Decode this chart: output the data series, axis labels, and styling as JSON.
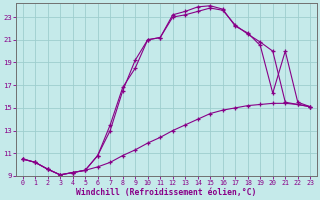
{
  "xlabel": "Windchill (Refroidissement éolien,°C)",
  "xlim_min": -0.5,
  "xlim_max": 23.5,
  "ylim_min": 9,
  "ylim_max": 24.2,
  "xticks": [
    0,
    1,
    2,
    3,
    4,
    5,
    6,
    7,
    8,
    9,
    10,
    11,
    12,
    13,
    14,
    15,
    16,
    17,
    18,
    19,
    20,
    21,
    22,
    23
  ],
  "yticks": [
    9,
    11,
    13,
    15,
    17,
    19,
    21,
    23
  ],
  "bg_color": "#c5eaea",
  "line_color": "#880088",
  "grid_color": "#9ecece",
  "line1_x": [
    0,
    1,
    2,
    3,
    4,
    5,
    6,
    7,
    8,
    9,
    10,
    11,
    12,
    13,
    14,
    15,
    16,
    17,
    18,
    19,
    20,
    21,
    22,
    23
  ],
  "line1_y": [
    10.5,
    10.2,
    9.6,
    9.1,
    9.3,
    9.5,
    9.8,
    10.2,
    10.8,
    11.3,
    11.9,
    12.4,
    13.0,
    13.5,
    14.0,
    14.5,
    14.8,
    15.0,
    15.2,
    15.3,
    15.4,
    15.4,
    15.3,
    15.1
  ],
  "line2_x": [
    0,
    1,
    2,
    3,
    4,
    5,
    6,
    7,
    8,
    9,
    10,
    11,
    12,
    13,
    14,
    15,
    16,
    17,
    18,
    19,
    20,
    21,
    22,
    23
  ],
  "line2_y": [
    10.5,
    10.2,
    9.6,
    9.1,
    9.3,
    9.5,
    10.8,
    13.0,
    16.5,
    19.2,
    21.0,
    21.2,
    23.0,
    23.2,
    23.5,
    23.8,
    23.6,
    22.3,
    21.5,
    20.8,
    20.0,
    15.5,
    15.3,
    15.1
  ],
  "line3_x": [
    0,
    1,
    2,
    3,
    4,
    5,
    6,
    7,
    8,
    9,
    10,
    11,
    12,
    13,
    14,
    15,
    16,
    17,
    18,
    19,
    20,
    21,
    22,
    23
  ],
  "line3_y": [
    10.5,
    10.2,
    9.6,
    9.1,
    9.3,
    9.5,
    10.8,
    13.5,
    16.8,
    18.5,
    21.0,
    21.2,
    23.2,
    23.5,
    23.9,
    24.0,
    23.7,
    22.2,
    21.6,
    20.5,
    16.3,
    20.0,
    15.5,
    15.1
  ]
}
